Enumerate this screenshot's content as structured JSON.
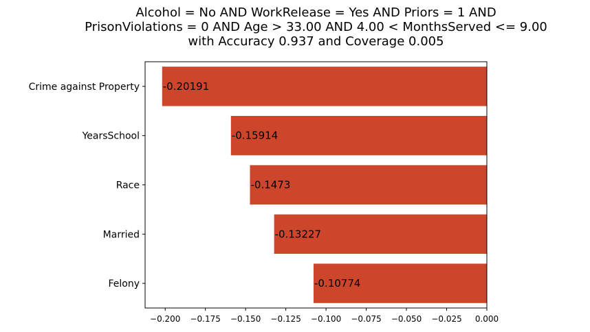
{
  "chart_data": {
    "type": "bar",
    "orientation": "horizontal",
    "title_lines": [
      "Alcohol = No AND WorkRelease = Yes AND Priors = 1 AND",
      "PrisonViolations = 0 AND Age > 33.00 AND 4.00 < MonthsServed <= 9.00",
      "with Accuracy 0.937 and Coverage 0.005"
    ],
    "categories": [
      "Crime against Property",
      "YearsSchool",
      "Race",
      "Married",
      "Felony"
    ],
    "values": [
      -0.20191,
      -0.15914,
      -0.1473,
      -0.13227,
      -0.10774
    ],
    "data_labels": [
      "-0.20191",
      "-0.15914",
      "-0.1473",
      "-0.13227",
      "-0.10774"
    ],
    "xlim": [
      -0.2125,
      0.0
    ],
    "xticks": [
      -0.2,
      -0.175,
      -0.15,
      -0.125,
      -0.1,
      -0.075,
      -0.05,
      -0.025,
      0.0
    ],
    "xtick_labels": [
      "−0.200",
      "−0.175",
      "−0.150",
      "−0.125",
      "−0.100",
      "−0.075",
      "−0.050",
      "−0.025",
      "0.000"
    ],
    "bar_color": "#cd462c",
    "grid": false,
    "xlabel": "",
    "ylabel": ""
  }
}
